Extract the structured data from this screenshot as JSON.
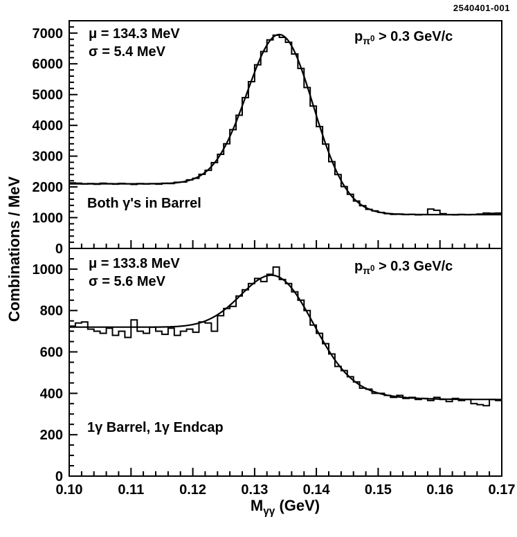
{
  "figure_id": "2540401-001",
  "axes": {
    "x": {
      "min": 0.1,
      "max": 0.17,
      "ticks": [
        0.1,
        0.11,
        0.12,
        0.13,
        0.14,
        0.15,
        0.16,
        0.17
      ],
      "tick_labels": [
        "0.10",
        "0.11",
        "0.12",
        "0.13",
        "0.14",
        "0.15",
        "0.16",
        "0.17"
      ],
      "minor_step": 0.002,
      "label": {
        "base": "M",
        "sub": "γγ",
        "rest": " (GeV)"
      }
    },
    "y_label": "Combinations / MeV"
  },
  "chart_data": [
    {
      "type": "bar",
      "render": "step-histogram",
      "panel": "top",
      "region_label": "Both γ's in Barrel",
      "stats": {
        "mu": "μ = 134.3 MeV",
        "sigma": "σ = 5.4 MeV"
      },
      "cut": {
        "base": "p",
        "sub": "π",
        "sup": "0",
        "rest": " > 0.3 GeV/c"
      },
      "bin_start": 0.1,
      "bin_width": 0.001,
      "values": [
        2130,
        2120,
        2095,
        2110,
        2085,
        2120,
        2105,
        2090,
        2115,
        2100,
        2080,
        2110,
        2095,
        2105,
        2090,
        2120,
        2110,
        2150,
        2160,
        2230,
        2280,
        2410,
        2540,
        2790,
        3060,
        3400,
        3860,
        4330,
        4900,
        5420,
        5970,
        6400,
        6780,
        6930,
        6860,
        6700,
        6320,
        5850,
        5230,
        4630,
        3960,
        3390,
        2820,
        2400,
        2010,
        1760,
        1540,
        1390,
        1270,
        1220,
        1170,
        1130,
        1110,
        1120,
        1100,
        1110,
        1090,
        1100,
        1280,
        1240,
        1130,
        1100,
        1090,
        1110,
        1095,
        1105,
        1120,
        1150,
        1140,
        1150
      ],
      "fit": {
        "A": 5050,
        "mu": 0.1343,
        "sigma": 0.0054,
        "bg_base": 1600,
        "bg_amp": 500,
        "bg_x0": 0.138,
        "bg_w": 0.0055
      },
      "ylim": [
        0,
        7400
      ],
      "yticks": [
        0,
        1000,
        2000,
        3000,
        4000,
        5000,
        6000,
        7000
      ],
      "y_minor_step": 200,
      "y_major_mod": 1000
    },
    {
      "type": "bar",
      "render": "step-histogram",
      "panel": "bottom",
      "region_label": "1γ Barrel, 1γ Endcap",
      "stats": {
        "mu": "μ = 133.8 MeV",
        "sigma": "σ = 5.6 MeV"
      },
      "cut": {
        "base": "p",
        "sub": "π",
        "sup": "0",
        "rest": " > 0.3 GeV/c"
      },
      "bin_start": 0.1,
      "bin_width": 0.001,
      "values": [
        725,
        740,
        745,
        710,
        700,
        690,
        715,
        680,
        700,
        670,
        755,
        700,
        690,
        720,
        700,
        685,
        715,
        680,
        700,
        710,
        695,
        745,
        740,
        700,
        775,
        810,
        820,
        870,
        900,
        930,
        955,
        940,
        975,
        1010,
        950,
        930,
        890,
        850,
        800,
        730,
        690,
        640,
        590,
        530,
        510,
        480,
        455,
        425,
        420,
        400,
        400,
        390,
        380,
        390,
        375,
        380,
        370,
        375,
        365,
        380,
        370,
        360,
        375,
        365,
        370,
        350,
        345,
        340,
        370,
        365
      ],
      "fit": {
        "A": 305,
        "mu": 0.1338,
        "sigma": 0.0056,
        "bg_base": 545,
        "bg_amp": 175,
        "bg_x0": 0.14,
        "bg_w": 0.008
      },
      "ylim": [
        0,
        1100
      ],
      "yticks": [
        0,
        200,
        400,
        600,
        800,
        1000
      ],
      "y_minor_step": 50,
      "y_major_mod": 200
    }
  ]
}
